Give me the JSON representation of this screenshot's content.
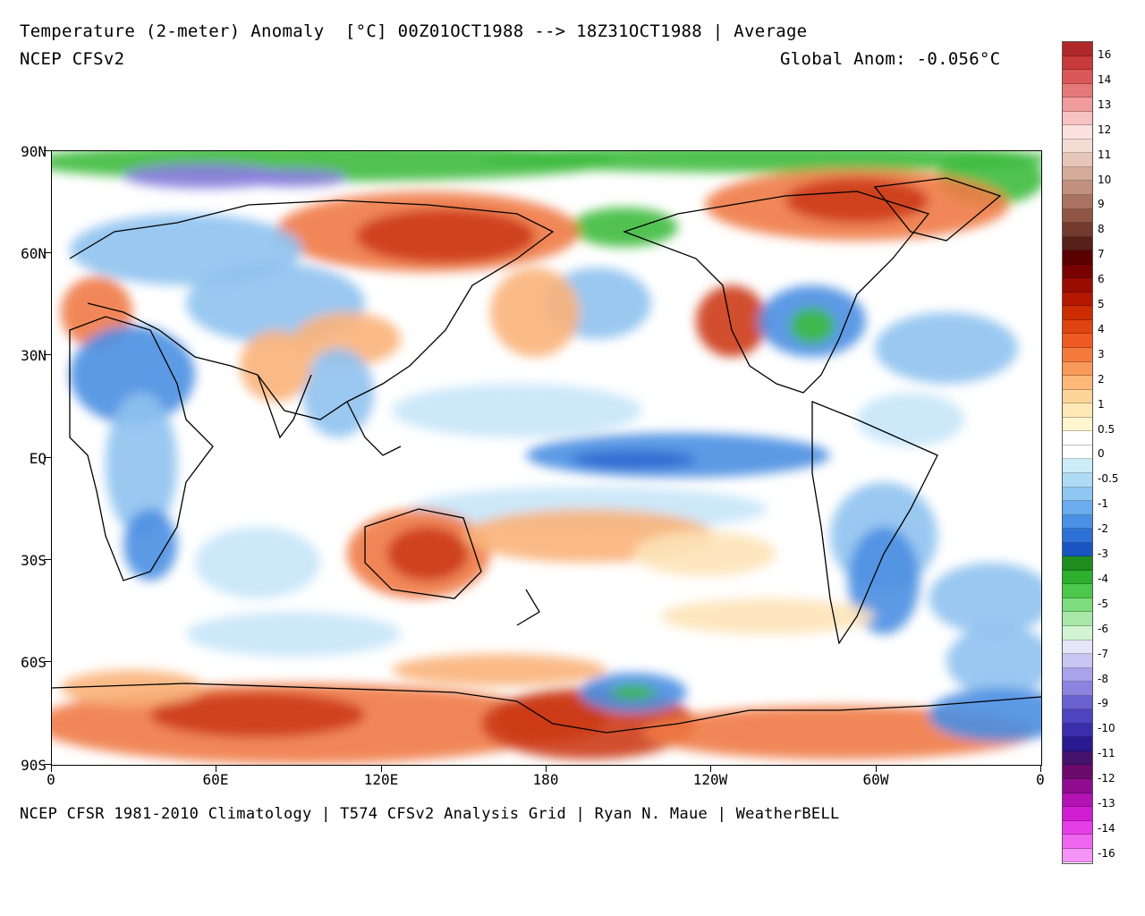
{
  "header": {
    "title": "Temperature (2-meter) Anomaly  [°C] 00Z01OCT1988 --> 18Z31OCT1988 | Average",
    "model": "NCEP CFSv2",
    "global_anom": "Global Anom: -0.056°C"
  },
  "footer": "NCEP CFSR 1981-2010 Climatology | T574 CFSv2 Analysis Grid | Ryan N. Maue | WeatherBELL",
  "axes": {
    "lat_labels": [
      "90N",
      "60N",
      "30N",
      "EQ",
      "30S",
      "60S",
      "90S"
    ],
    "lon_labels": [
      "0",
      "60E",
      "120E",
      "180",
      "120W",
      "60W",
      "0"
    ]
  },
  "colorbar": {
    "labels": [
      "16",
      "14",
      "13",
      "12",
      "11",
      "10",
      "9",
      "8",
      "7",
      "6",
      "5",
      "4",
      "3",
      "2",
      "1",
      "0.5",
      "0",
      "-0.5",
      "-1",
      "-2",
      "-3",
      "-4",
      "-5",
      "-6",
      "-7",
      "-8",
      "-9",
      "-10",
      "-11",
      "-12",
      "-13",
      "-14",
      "-16"
    ],
    "colors": [
      "#b0272a",
      "#c93a3c",
      "#da5859",
      "#e57979",
      "#f19c9c",
      "#f8c2c2",
      "#fbe0e0",
      "#f3ddd3",
      "#e6c6b9",
      "#d4aa9b",
      "#c1907f",
      "#a97261",
      "#8f5646",
      "#733a2f",
      "#572018",
      "#5a0000",
      "#7a0000",
      "#9a0b00",
      "#b51800",
      "#cc2c00",
      "#e04410",
      "#ee5a22",
      "#f47a3c",
      "#f89a5a",
      "#fbb878",
      "#fdd59a",
      "#fee9b6",
      "#fff6cf",
      "#ffffff",
      "#ffffff",
      "#ccecf8",
      "#aedcf6",
      "#8ec7f2",
      "#6aaced",
      "#4a90e4",
      "#2e71d6",
      "#1a56c2",
      "#1e8c1e",
      "#2eb02e",
      "#4cc84c",
      "#7ddc7d",
      "#a8e8a8",
      "#d2f4d2",
      "#e6e6fb",
      "#c9c6f3",
      "#a8a3ea",
      "#8b83e0",
      "#6b62d2",
      "#4e44c0",
      "#3a2eac",
      "#2a1a92",
      "#43126b",
      "#6b0a6b",
      "#900c90",
      "#b313b3",
      "#d21ed2",
      "#e63ee6",
      "#ef67ef",
      "#f693f6"
    ]
  },
  "map": {
    "background": "#ffffff",
    "palette": {
      "warm_strong": "#cc3a1a",
      "warm": "#ef7a45",
      "warm_light": "#f9b27a",
      "warm_pale": "#fde3b8",
      "cool_pale": "#c6e6f8",
      "cool_light": "#8fc2f0",
      "cool": "#4a8fe2",
      "cool_strong": "#2f66cf",
      "green": "#3dbb3d",
      "purple": "#8b7de0",
      "coast": "#000000"
    }
  }
}
